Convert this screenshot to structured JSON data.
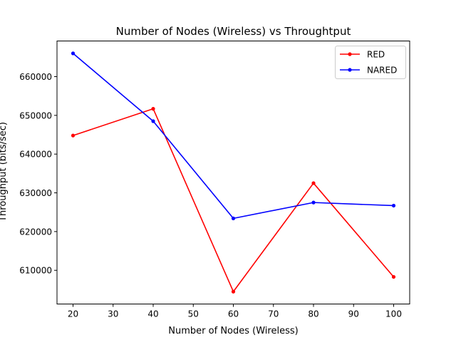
{
  "chart_data": {
    "type": "line",
    "title": "Number of Nodes (Wireless)  vs Throughtput",
    "xlabel": "Number of Nodes (Wireless)",
    "ylabel": "Throughput (bits/sec)",
    "x": [
      20,
      40,
      60,
      80,
      100
    ],
    "xlim": [
      16,
      104
    ],
    "ylim": [
      601300,
      669200
    ],
    "xticks": [
      20,
      30,
      40,
      50,
      60,
      70,
      80,
      90,
      100
    ],
    "yticks": [
      610000,
      620000,
      630000,
      640000,
      650000,
      660000
    ],
    "grid": false,
    "legend_position": "top-right",
    "series": [
      {
        "name": "RED",
        "color": "#ff0000",
        "marker": "dot",
        "values": [
          644800,
          651700,
          604500,
          632500,
          608300
        ]
      },
      {
        "name": "NARED",
        "color": "#0000ff",
        "marker": "dot",
        "values": [
          666000,
          648500,
          623400,
          627500,
          626700
        ]
      }
    ]
  }
}
